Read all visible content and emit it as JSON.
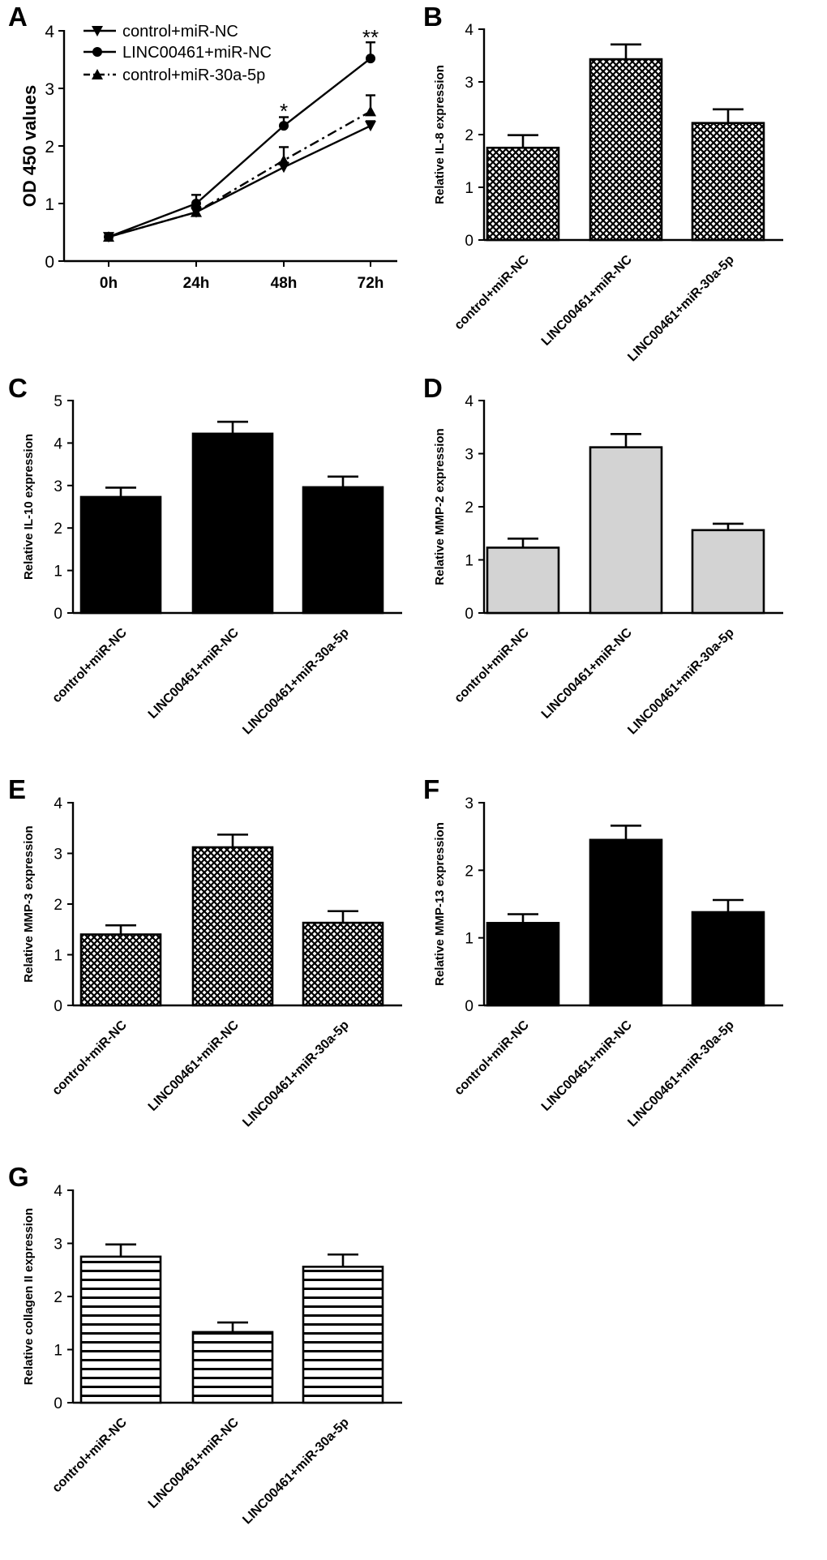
{
  "figure": {
    "panel_A": {
      "letter": "A",
      "chart_data": {
        "type": "line",
        "ylabel": "OD 450 values",
        "ylim": [
          0,
          4
        ],
        "yticks": [
          "0",
          "1",
          "2",
          "3",
          "4"
        ],
        "categories": [
          "0h",
          "24h",
          "48h",
          "72h"
        ],
        "series": [
          {
            "name": "control+miR-NC",
            "marker": "triangle-down",
            "dash": "solid",
            "values": [
              0.42,
              0.85,
              1.63,
              2.35
            ],
            "errors": [
              0.05,
              0.07,
              0.08,
              0.08
            ]
          },
          {
            "name": "LINC00461+miR-NC",
            "marker": "circle",
            "dash": "solid",
            "values": [
              0.42,
              1.0,
              2.35,
              3.52
            ],
            "errors": [
              0.05,
              0.15,
              0.15,
              0.28
            ]
          },
          {
            "name": "control+miR-30a-5p",
            "marker": "triangle-up",
            "dash": "dashdot",
            "values": [
              0.42,
              0.85,
              1.75,
              2.6
            ],
            "errors": [
              0.05,
              0.09,
              0.23,
              0.28
            ]
          }
        ],
        "annotations": [
          {
            "text": "*",
            "x": "48h",
            "y": 2.65
          },
          {
            "text": "**",
            "x": "72h",
            "y": 3.93
          }
        ]
      }
    },
    "panels_bar": [
      {
        "letter": "B",
        "chart_data": {
          "type": "bar",
          "fill": "crosshatch",
          "ylabel": "Relative IL-8 expression",
          "ylim": [
            0,
            4
          ],
          "yticks": [
            "0",
            "1",
            "2",
            "3",
            "4"
          ],
          "categories": [
            "control+miR-NC",
            "LINC00461+miR-NC",
            "LINC00461+miR-30a-5p"
          ],
          "values": [
            1.75,
            3.43,
            2.22
          ],
          "errors": [
            0.24,
            0.28,
            0.26
          ]
        }
      },
      {
        "letter": "C",
        "chart_data": {
          "type": "bar",
          "fill": "solid",
          "ylabel": "Relative IL-10 expression",
          "ylim": [
            0,
            5
          ],
          "yticks": [
            "0",
            "1",
            "2",
            "3",
            "4",
            "5"
          ],
          "categories": [
            "control+miR-NC",
            "LINC00461+miR-NC",
            "LINC00461+miR-30a-5p"
          ],
          "values": [
            2.73,
            4.22,
            2.96
          ],
          "errors": [
            0.22,
            0.28,
            0.25
          ]
        }
      },
      {
        "letter": "D",
        "chart_data": {
          "type": "bar",
          "fill": "gray",
          "ylabel": "Relative MMP-2  expression",
          "ylim": [
            0,
            4
          ],
          "yticks": [
            "0",
            "1",
            "2",
            "3",
            "4"
          ],
          "categories": [
            "control+miR-NC",
            "LINC00461+miR-NC",
            "LINC00461+miR-30a-5p"
          ],
          "values": [
            1.23,
            3.12,
            1.56
          ],
          "errors": [
            0.17,
            0.25,
            0.12
          ]
        }
      },
      {
        "letter": "E",
        "chart_data": {
          "type": "bar",
          "fill": "crosshatch",
          "ylabel": "Relative MMP-3 expression",
          "ylim": [
            0,
            4
          ],
          "yticks": [
            "0",
            "1",
            "2",
            "3",
            "4"
          ],
          "categories": [
            "control+miR-NC",
            "LINC00461+miR-NC",
            "LINC00461+miR-30a-5p"
          ],
          "values": [
            1.4,
            3.12,
            1.63
          ],
          "errors": [
            0.18,
            0.25,
            0.23
          ]
        }
      },
      {
        "letter": "F",
        "chart_data": {
          "type": "bar",
          "fill": "solid",
          "ylabel": "Relative MMP-13 expression",
          "ylim": [
            0,
            3
          ],
          "yticks": [
            "0",
            "1",
            "2",
            "3"
          ],
          "categories": [
            "control+miR-NC",
            "LINC00461+miR-NC",
            "LINC00461+miR-30a-5p"
          ],
          "values": [
            1.22,
            2.45,
            1.38
          ],
          "errors": [
            0.13,
            0.21,
            0.18
          ]
        }
      },
      {
        "letter": "G",
        "chart_data": {
          "type": "bar",
          "fill": "hstripe",
          "ylabel": "Relative collagen II  expression",
          "ylim": [
            0,
            4
          ],
          "yticks": [
            "0",
            "1",
            "2",
            "3",
            "4"
          ],
          "categories": [
            "control+miR-NC",
            "LINC00461+miR-NC",
            "LINC00461+miR-30a-5p"
          ],
          "values": [
            2.75,
            1.33,
            2.56
          ],
          "errors": [
            0.23,
            0.18,
            0.23
          ]
        }
      }
    ]
  }
}
